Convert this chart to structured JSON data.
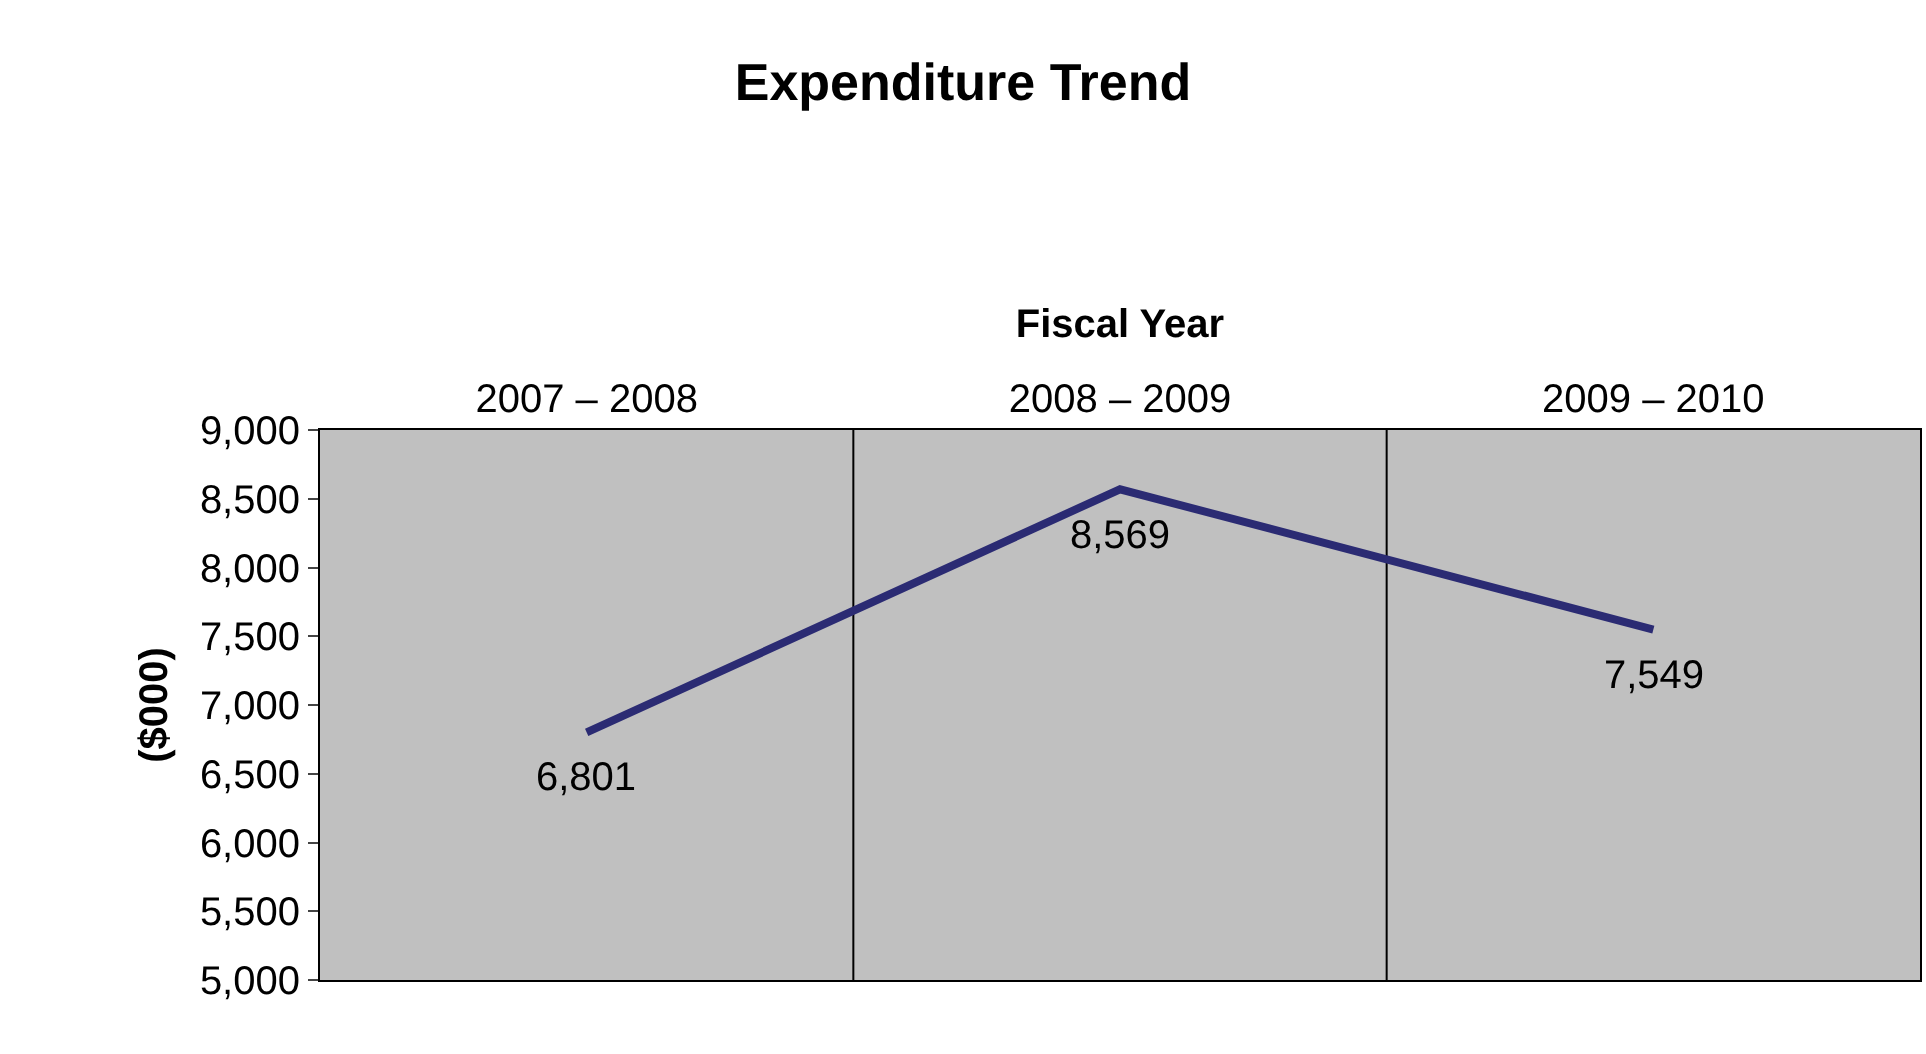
{
  "chart_data": {
    "type": "line",
    "title": "Expenditure Trend",
    "xlabel": "Fiscal Year",
    "ylabel": "($000)",
    "categories": [
      "2007 – 2008",
      "2008 – 2009",
      "2009 – 2010"
    ],
    "series": [
      {
        "color": "#2b2b73",
        "values": [
          6801,
          8569,
          7549
        ]
      }
    ],
    "value_labels": [
      "6,801",
      "8,569",
      "7,549"
    ],
    "ylim": [
      5000,
      9000
    ],
    "yticks": [
      {
        "value": 5000,
        "label": "5,000"
      },
      {
        "value": 5500,
        "label": "5,500"
      },
      {
        "value": 6000,
        "label": "6,000"
      },
      {
        "value": 6500,
        "label": "6,500"
      },
      {
        "value": 7000,
        "label": "7,000"
      },
      {
        "value": 7500,
        "label": "7,500"
      },
      {
        "value": 8000,
        "label": "8,000"
      },
      {
        "value": 8500,
        "label": "8,500"
      },
      {
        "value": 9000,
        "label": "9,000"
      }
    ],
    "grid": "x",
    "legend": false,
    "marker": "none",
    "line_style": "solid"
  }
}
